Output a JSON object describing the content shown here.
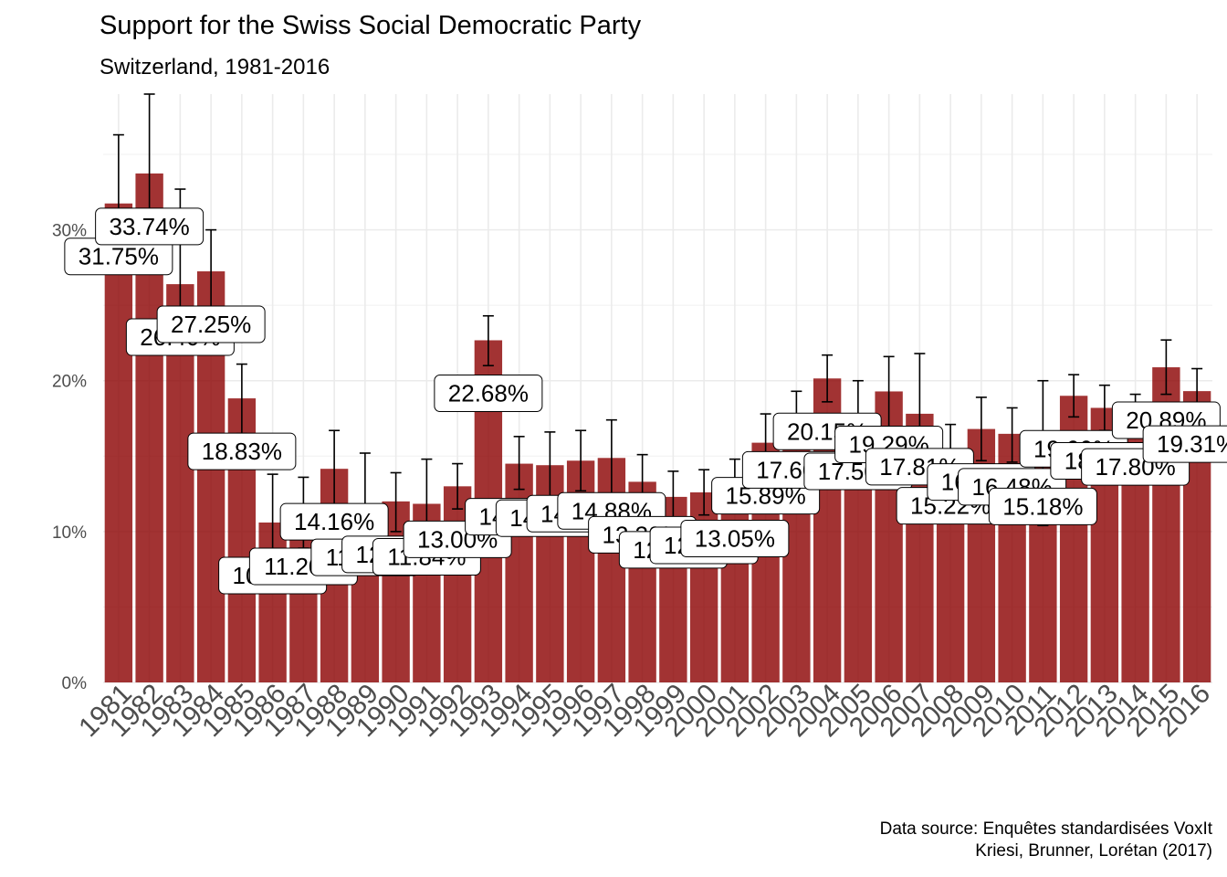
{
  "chart_data": {
    "type": "bar",
    "title": "Support for the Swiss Social Democratic Party",
    "subtitle": "Switzerland, 1981-2016",
    "caption": [
      "Data source: Enquêtes standardisées VoxIt",
      "Kriesi, Brunner, Lorétan (2017)"
    ],
    "xlabel": "",
    "ylabel": "",
    "ylim": [
      0,
      39
    ],
    "y_ticks": [
      0,
      10,
      20,
      30
    ],
    "y_tick_labels": [
      "0%",
      "10%",
      "20%",
      "30%"
    ],
    "grid": true,
    "bar_color": "#8b0000",
    "categories": [
      "1981",
      "1982",
      "1983",
      "1984",
      "1985",
      "1986",
      "1987",
      "1988",
      "1989",
      "1990",
      "1991",
      "1992",
      "1993",
      "1994",
      "1995",
      "1996",
      "1997",
      "1998",
      "1999",
      "2000",
      "2001",
      "2002",
      "2003",
      "2004",
      "2005",
      "2006",
      "2007",
      "2008",
      "2009",
      "2010",
      "2011",
      "2012",
      "2013",
      "2014",
      "2015",
      "2016"
    ],
    "values": [
      31.75,
      33.74,
      26.4,
      27.25,
      18.83,
      10.6,
      11.2,
      14.16,
      11.8,
      12.0,
      11.84,
      13.0,
      22.68,
      14.5,
      14.4,
      14.7,
      14.88,
      13.3,
      12.3,
      12.6,
      13.05,
      15.89,
      17.6,
      20.15,
      17.5,
      19.29,
      17.81,
      15.22,
      16.8,
      16.48,
      15.18,
      19.0,
      18.2,
      17.8,
      20.89,
      19.31
    ],
    "error_low": [
      28.8,
      29.9,
      21.8,
      24.5,
      16.5,
      7.4,
      8.9,
      11.6,
      8.4,
      10.0,
      8.9,
      11.5,
      21.0,
      12.8,
      12.2,
      12.7,
      12.3,
      11.4,
      10.6,
      11.1,
      11.2,
      14.0,
      15.9,
      18.6,
      14.9,
      16.8,
      13.8,
      13.3,
      14.7,
      14.6,
      10.4,
      17.6,
      16.7,
      16.4,
      19.1,
      17.7
    ],
    "error_high": [
      36.3,
      39.5,
      32.7,
      30.0,
      21.1,
      13.8,
      13.6,
      16.7,
      15.2,
      13.9,
      14.8,
      14.5,
      24.3,
      16.3,
      16.6,
      16.7,
      17.4,
      15.1,
      14.0,
      14.1,
      14.8,
      17.8,
      19.3,
      21.7,
      20.0,
      21.6,
      21.8,
      17.1,
      18.9,
      18.2,
      20.0,
      20.4,
      19.7,
      19.1,
      22.7,
      20.8
    ],
    "data_labels": [
      "31.75%",
      "33.74%",
      "26.40%",
      "27.25%",
      "18.83%",
      "10.60%",
      "11.20%",
      "14.16%",
      "11.80%",
      "12.00%",
      "11.84%",
      "13.00%",
      "22.68%",
      "14.50%",
      "14.40%",
      "14.70%",
      "14.88%",
      "13.30%",
      "12.30%",
      "12.60%",
      "13.05%",
      "15.89%",
      "17.60%",
      "20.15%",
      "17.50%",
      "19.29%",
      "17.81%",
      "15.22%",
      "16.80%",
      "16.48%",
      "15.18%",
      "19.00%",
      "18.20%",
      "17.80%",
      "20.89%",
      "19.31%"
    ]
  }
}
